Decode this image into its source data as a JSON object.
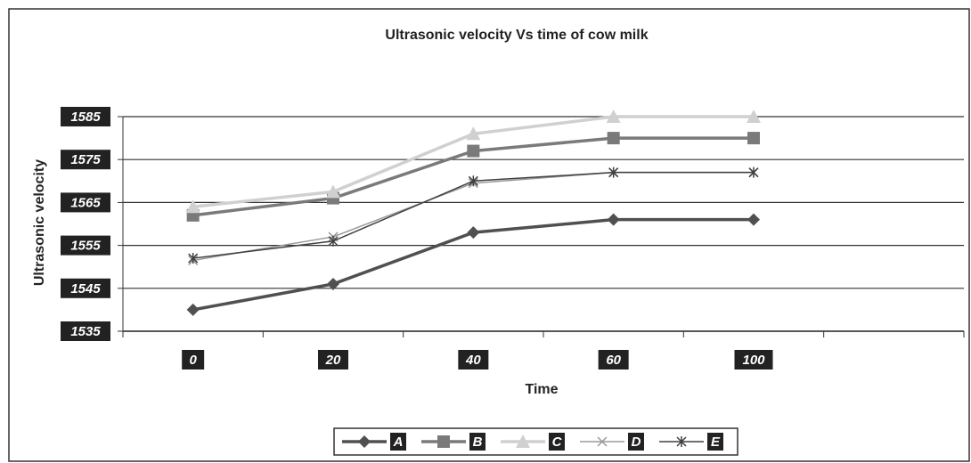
{
  "chart_data": {
    "type": "line",
    "title": "Ultrasonic velocity  Vs time of cow milk",
    "x_label": "Time",
    "y_label": "Ultrasonic velocity",
    "categories": [
      "0",
      "20",
      "40",
      "60",
      "100",
      null
    ],
    "series": [
      {
        "name": "A",
        "color": "#505050",
        "marker": "diamond",
        "values": [
          1540,
          1546,
          1558,
          1561,
          1561,
          null
        ]
      },
      {
        "name": "B",
        "color": "#7a7a7a",
        "marker": "square",
        "values": [
          1562,
          1566,
          1577,
          1580,
          1580,
          null
        ]
      },
      {
        "name": "C",
        "color": "#d0d0d0",
        "marker": "triangle",
        "values": [
          1564,
          1567.5,
          1581,
          1585,
          1585,
          null
        ]
      },
      {
        "name": "D",
        "color": "#9a9a9a",
        "marker": "x",
        "values": [
          1551.5,
          1557,
          1569.5,
          1572,
          1572,
          null
        ]
      },
      {
        "name": "E",
        "color": "#404040",
        "marker": "star",
        "values": [
          1552,
          1556,
          1570,
          1572,
          1572,
          null
        ]
      }
    ],
    "ylim": [
      1535,
      1585
    ],
    "yticks": [
      1535,
      1545,
      1555,
      1565,
      1575,
      1585
    ],
    "grid": true,
    "legend": "bottom"
  }
}
